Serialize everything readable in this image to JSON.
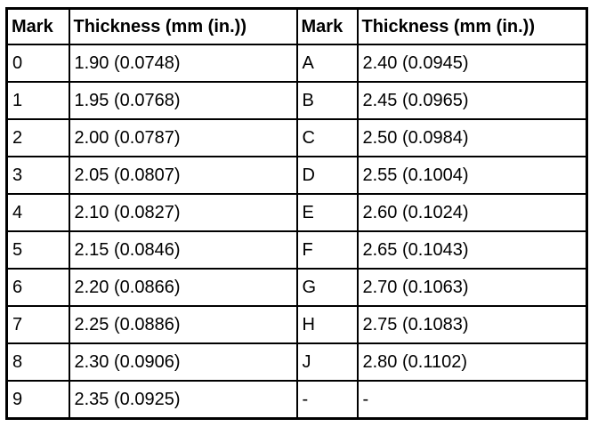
{
  "table": {
    "header": [
      "Mark",
      "Thickness (mm (in.))",
      "Mark",
      "Thickness (mm (in.))"
    ],
    "rows": [
      [
        "0",
        "1.90 (0.0748)",
        "A",
        "2.40 (0.0945)"
      ],
      [
        "1",
        "1.95 (0.0768)",
        "B",
        "2.45 (0.0965)"
      ],
      [
        "2",
        "2.00 (0.0787)",
        "C",
        "2.50 (0.0984)"
      ],
      [
        "3",
        "2.05 (0.0807)",
        "D",
        "2.55 (0.1004)"
      ],
      [
        "4",
        "2.10 (0.0827)",
        "E",
        "2.60 (0.1024)"
      ],
      [
        "5",
        "2.15 (0.0846)",
        "F",
        "2.65 (0.1043)"
      ],
      [
        "6",
        "2.20 (0.0866)",
        "G",
        "2.70 (0.1063)"
      ],
      [
        "7",
        "2.25 (0.0886)",
        "H",
        "2.75 (0.1083)"
      ],
      [
        "8",
        "2.30 (0.0906)",
        "J",
        "2.80 (0.1102)"
      ],
      [
        "9",
        "2.35 (0.0925)",
        "-",
        "-"
      ]
    ]
  }
}
